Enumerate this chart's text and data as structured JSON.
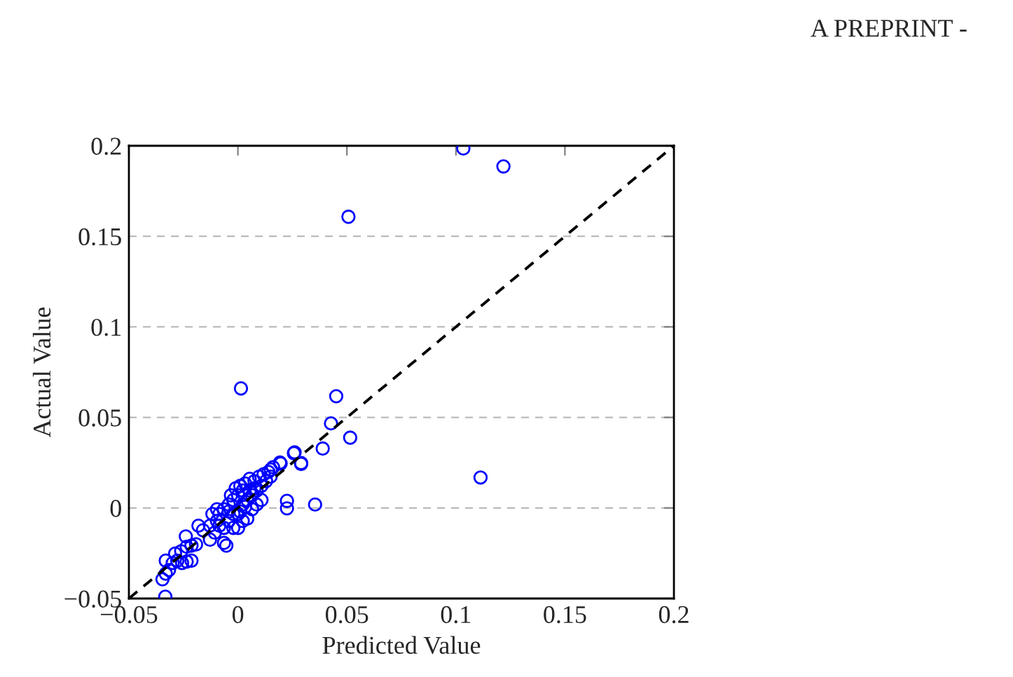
{
  "chart_data": {
    "type": "scatter",
    "xlabel": "Predicted Value",
    "ylabel": "Actual Value",
    "annotations": [
      "A PREPRINT -"
    ],
    "xlim": [
      -0.05,
      0.2
    ],
    "ylim": [
      -0.05,
      0.2
    ],
    "xticks": [
      {
        "value": -0.05,
        "label": "−0.05"
      },
      0,
      0.05,
      0.1,
      0.15,
      0.2
    ],
    "yticks": [
      {
        "value": -0.05,
        "label": "−0.05"
      },
      0,
      0.05,
      0.1,
      0.15,
      0.2
    ],
    "grid": "y",
    "series": [
      {
        "color": "#0000ff",
        "marker": "circle",
        "x": [
          0.1034,
          0.1218,
          0.0507,
          0.0014,
          0.0451,
          0.0427,
          0.0515,
          0.0389,
          0.026,
          0.029,
          0.0196,
          0.1113,
          0.0151,
          -0.0333,
          -0.0346,
          -0.0331,
          -0.0316,
          -0.0331,
          -0.0299,
          -0.0278,
          -0.0256,
          -0.0235,
          -0.0213,
          -0.0288,
          -0.026,
          -0.0235,
          -0.0213,
          -0.0192,
          -0.0239,
          -0.0181,
          -0.0128,
          -0.0064,
          -0.0053,
          -0.016,
          -0.0128,
          -0.0096,
          -0.0085,
          -0.0064,
          -0.0042,
          -0.0021,
          0.0001,
          0.0022,
          -0.0032,
          -0.001,
          0.0011,
          0.0033,
          0.0054,
          0.0076,
          0.0097,
          0.0118,
          0.014,
          0.0161,
          0.0193,
          0.0257,
          0.029,
          0.0225,
          0.0225,
          0.0354,
          -0.0085,
          -0.0106,
          -0.0042,
          -0.0021,
          0.0011,
          0.0033,
          0.0043,
          0.0065,
          0.0086,
          0.0108,
          0.0129,
          0.015,
          -0.0064,
          0.0001,
          0.0022,
          0.0065,
          0.0086,
          0.0108,
          0.0076,
          0.0043,
          -0.0021,
          -0.0117,
          -0.0096,
          0.0001,
          0.0022,
          -0.0042,
          0.0054
        ],
        "values": [
          0.1985,
          0.1886,
          0.1608,
          0.066,
          0.0617,
          0.0467,
          0.0388,
          0.0328,
          0.0307,
          0.0248,
          0.0245,
          0.0168,
          0.0212,
          -0.049,
          -0.0394,
          -0.0363,
          -0.0343,
          -0.0291,
          -0.0304,
          -0.0291,
          -0.0304,
          -0.0296,
          -0.0291,
          -0.0252,
          -0.0239,
          -0.0214,
          -0.0208,
          -0.0201,
          -0.0157,
          -0.0098,
          -0.0175,
          -0.0193,
          -0.0208,
          -0.0123,
          -0.0098,
          -0.0072,
          -0.0033,
          -0.0007,
          0.0019,
          0.0044,
          0.007,
          0.0096,
          0.007,
          0.0109,
          0.0122,
          0.0135,
          0.0161,
          0.0148,
          0.0173,
          0.0186,
          0.0199,
          0.0225,
          0.0251,
          0.0302,
          0.0243,
          0.0039,
          -0.0002,
          0.0019,
          -0.0098,
          -0.0136,
          -0.0072,
          -0.0033,
          -0.002,
          0.0006,
          0.0044,
          0.007,
          0.0096,
          0.0122,
          0.0148,
          0.0173,
          -0.011,
          -0.011,
          -0.0072,
          -0.0007,
          0.0019,
          0.0044,
          0.0109,
          -0.0059,
          -0.011,
          -0.0033,
          -0.0007,
          -0.0033,
          0.0019,
          -0.002,
          0.0096
        ]
      },
      {
        "type": "line",
        "color": "#000000",
        "line_style": "dashed",
        "x": [
          -0.05,
          0.2
        ],
        "values": [
          -0.05,
          0.2
        ]
      }
    ]
  }
}
